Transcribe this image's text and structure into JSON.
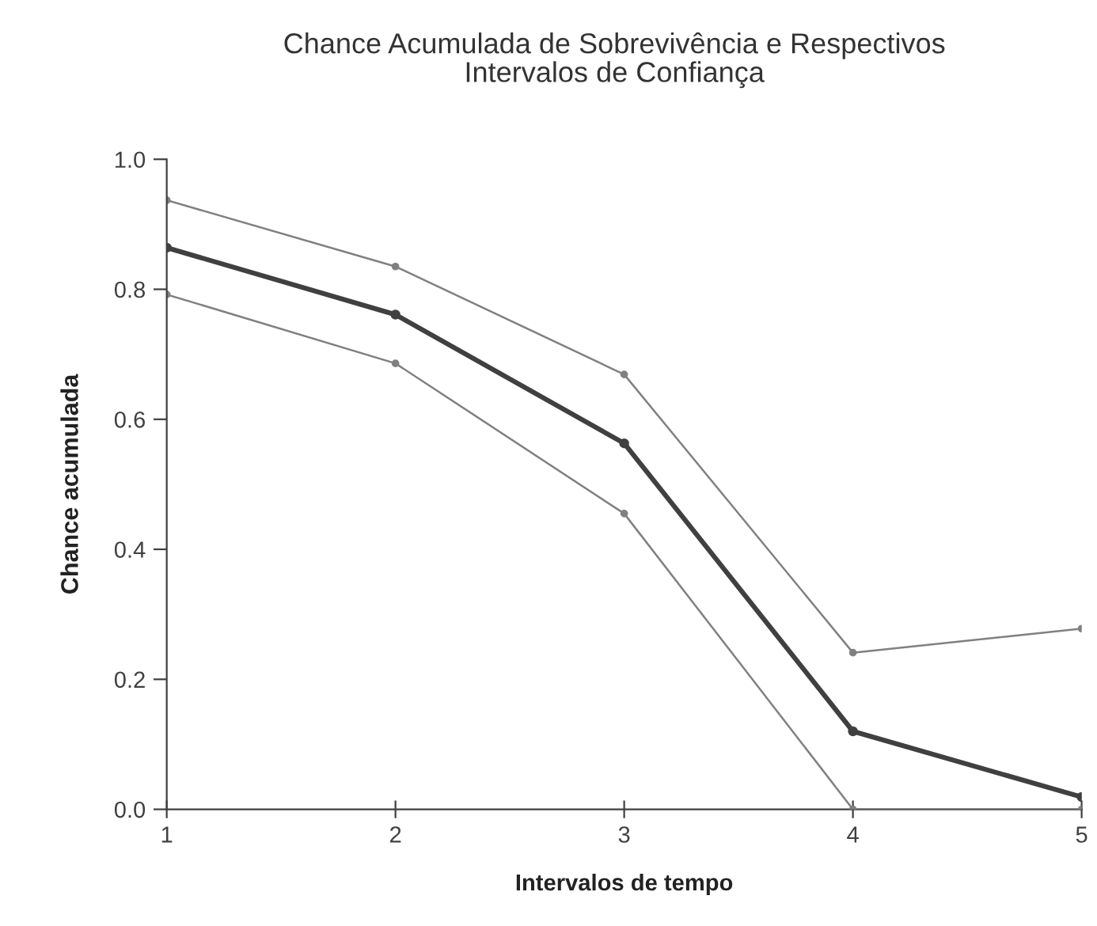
{
  "chart_data": {
    "type": "line",
    "title": "Chance Acumulada de Sobrevivência e Respectivos\nIntervalos de Confiança",
    "xlabel": "Intervalos de tempo",
    "ylabel": "Chance acumulada",
    "x": [
      1,
      2,
      3,
      4,
      5
    ],
    "series": [
      {
        "color": "#808080",
        "values": [
          0.937,
          0.835,
          0.669,
          0.241,
          0.278
        ],
        "line_style": "solid",
        "marker": "circle"
      },
      {
        "color": "#404040",
        "values": [
          0.864,
          0.761,
          0.563,
          0.12,
          0.019
        ],
        "line_style": "solid",
        "marker": "circle"
      },
      {
        "color": "#808080",
        "values": [
          0.792,
          0.686,
          0.455,
          0.0,
          0.0
        ],
        "line_style": "solid",
        "marker": "circle"
      }
    ],
    "xlim": [
      1,
      5
    ],
    "xticks": [
      1,
      2,
      3,
      4,
      5
    ],
    "ylim": [
      0,
      1.0
    ],
    "yticks": [
      {
        "value": 0,
        "label": "0.0"
      },
      {
        "value": 0.2,
        "label": "0.2"
      },
      {
        "value": 0.4,
        "label": "0.4"
      },
      {
        "value": 0.6,
        "label": "0.6"
      },
      {
        "value": 0.8,
        "label": "0.8"
      },
      {
        "value": 1.0,
        "label": "1.0"
      }
    ],
    "grid": false,
    "legend": false
  }
}
